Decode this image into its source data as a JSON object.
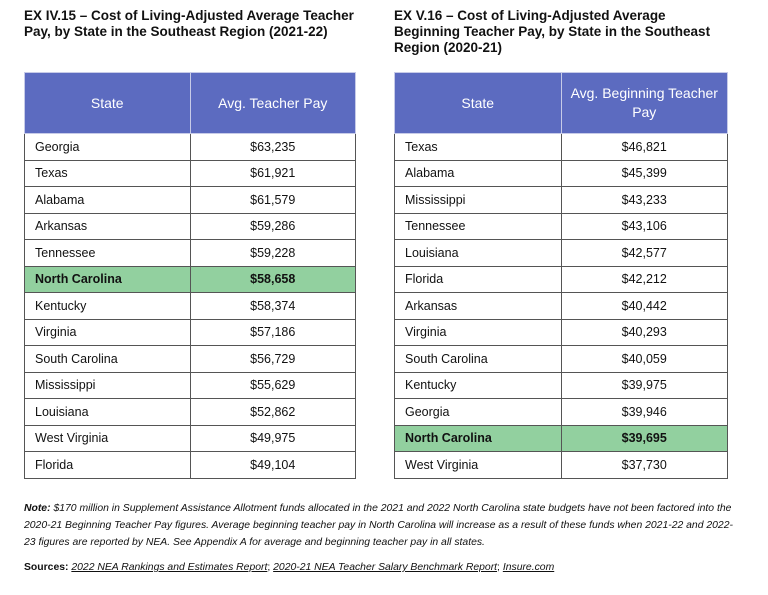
{
  "left": {
    "title": "EX IV.15 – Cost of Living-Adjusted Average Teacher Pay, by State in the Southeast Region (2021-22)",
    "headers": [
      "State",
      "Avg. Teacher Pay"
    ],
    "rows": [
      {
        "state": "Georgia",
        "value": "$63,235"
      },
      {
        "state": "Texas",
        "value": "$61,921"
      },
      {
        "state": "Alabama",
        "value": "$61,579"
      },
      {
        "state": "Arkansas",
        "value": "$59,286"
      },
      {
        "state": "Tennessee",
        "value": "$59,228"
      },
      {
        "state": "North Carolina",
        "value": "$58,658"
      },
      {
        "state": "Kentucky",
        "value": "$58,374"
      },
      {
        "state": "Virginia",
        "value": "$57,186"
      },
      {
        "state": "South Carolina",
        "value": "$56,729"
      },
      {
        "state": "Mississippi",
        "value": "$55,629"
      },
      {
        "state": "Louisiana",
        "value": "$52,862"
      },
      {
        "state": "West Virginia",
        "value": "$49,975"
      },
      {
        "state": "Florida",
        "value": "$49,104"
      }
    ]
  },
  "right": {
    "title": "EX V.16 – Cost of Living-Adjusted Average Beginning Teacher Pay, by State in the Southeast Region (2020-21)",
    "headers": [
      "State",
      "Avg. Beginning Teacher Pay"
    ],
    "rows": [
      {
        "state": "Texas",
        "value": "$46,821"
      },
      {
        "state": "Alabama",
        "value": "$45,399"
      },
      {
        "state": "Mississippi",
        "value": "$43,233"
      },
      {
        "state": "Tennessee",
        "value": "$43,106"
      },
      {
        "state": "Louisiana",
        "value": "$42,577"
      },
      {
        "state": "Florida",
        "value": "$42,212"
      },
      {
        "state": "Arkansas",
        "value": "$40,442"
      },
      {
        "state": "Virginia",
        "value": "$40,293"
      },
      {
        "state": "South Carolina",
        "value": "$40,059"
      },
      {
        "state": "Kentucky",
        "value": "$39,975"
      },
      {
        "state": "Georgia",
        "value": "$39,946"
      },
      {
        "state": "North Carolina",
        "value": "$39,695"
      },
      {
        "state": "West Virginia",
        "value": "$37,730"
      }
    ]
  },
  "highlight_state": "North Carolina",
  "colors": {
    "header_bg": "#5c6bc0",
    "highlight_bg": "#92d09f"
  },
  "footnote": {
    "note_label": "Note:",
    "note_text": " $170 million in Supplement Assistance Allotment funds allocated in the 2021 and 2022 North Carolina state budgets have not been factored into the 2020-21 Beginning Teacher Pay figures. Average beginning teacher pay in North Carolina will increase as a result of these funds when 2021-22 and 2022-23 figures are reported by NEA. See Appendix A for average and beginning teacher pay in all states.",
    "sources_label": "Sources:",
    "sources": [
      "2022 NEA Rankings and Estimates Report",
      "2020-21 NEA Teacher Salary Benchmark Report",
      "Insure.com"
    ],
    "sources_sep": "; "
  }
}
